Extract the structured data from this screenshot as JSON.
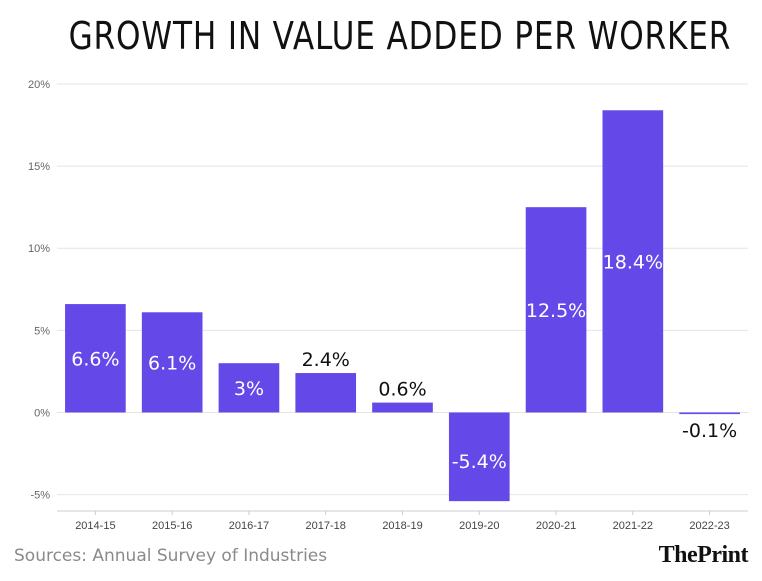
{
  "chart_data": {
    "type": "bar",
    "title": "GROWTH IN VALUE ADDED PER WORKER",
    "categories": [
      "2014-15",
      "2015-16",
      "2016-17",
      "2017-18",
      "2018-19",
      "2019-20",
      "2020-21",
      "2021-22",
      "2022-23"
    ],
    "values": [
      6.6,
      6.1,
      3,
      2.4,
      0.6,
      -5.4,
      12.5,
      18.4,
      -0.1
    ],
    "data_labels": [
      "6.6%",
      "6.1%",
      "3%",
      "2.4%",
      "0.6%",
      "-5.4%",
      "12.5%",
      "18.4%",
      "-0.1%"
    ],
    "yticks": [
      20,
      15,
      10,
      5,
      0,
      -5
    ],
    "ytick_labels": [
      "20%",
      "15%",
      "10%",
      "5%",
      "0%",
      "-5%"
    ],
    "ylim": [
      -6,
      20
    ],
    "xlabel": "",
    "ylabel": "",
    "grid": true,
    "bar_color": "#6549e8"
  },
  "footer": {
    "source": "Sources: Annual Survey of Industries",
    "logo": "ThePrint"
  }
}
